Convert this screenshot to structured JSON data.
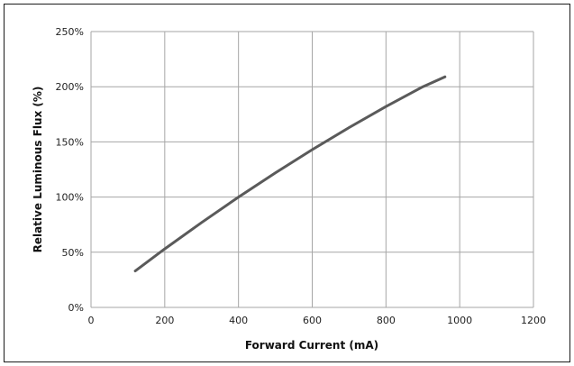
{
  "chart_data": {
    "type": "line",
    "title": "",
    "xlabel": "Forward Current (mA)",
    "ylabel": "Relative Luminous Flux (%)",
    "xlim": [
      0,
      1200
    ],
    "ylim": [
      0,
      250
    ],
    "xticks": [
      0,
      200,
      400,
      600,
      800,
      1000,
      1200
    ],
    "xtick_labels": [
      "0",
      "200",
      "400",
      "600",
      "800",
      "1000",
      "1200"
    ],
    "yticks": [
      0,
      50,
      100,
      150,
      200,
      250
    ],
    "ytick_labels": [
      "0%",
      "50%",
      "100%",
      "150%",
      "200%",
      "250%"
    ],
    "grid": true,
    "legend": "none",
    "series": [
      {
        "color": "#5a5a5a",
        "x": [
          120,
          200,
          300,
          400,
          500,
          600,
          700,
          800,
          900,
          960
        ],
        "y": [
          33,
          53,
          77,
          100,
          122,
          143,
          163,
          182,
          200,
          209
        ]
      }
    ]
  }
}
